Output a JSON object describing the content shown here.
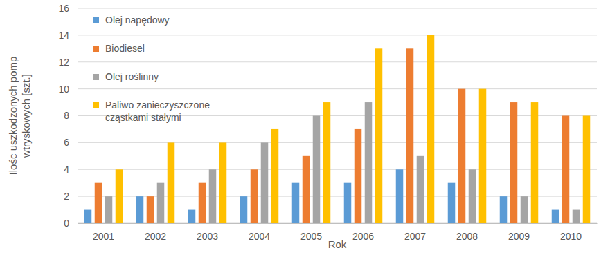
{
  "chart_data": {
    "type": "bar",
    "x_label": "Rok",
    "y_label": "Ilośc uszkodzonych pomp wtryskowych [szt.]",
    "categories": [
      "2001",
      "2002",
      "2003",
      "2004",
      "2005",
      "2006",
      "2007",
      "2008",
      "2009",
      "2010"
    ],
    "series": [
      {
        "name": "Olej napędowy",
        "color": "#5b9bd5",
        "values": [
          1,
          2,
          1,
          2,
          3,
          3,
          4,
          3,
          2,
          1
        ]
      },
      {
        "name": "Biodiesel",
        "color": "#ed7d31",
        "values": [
          3,
          2,
          3,
          4,
          5,
          7,
          13,
          10,
          9,
          8
        ]
      },
      {
        "name": "Olej roślinny",
        "color": "#a5a5a5",
        "values": [
          2,
          3,
          4,
          6,
          8,
          9,
          5,
          4,
          2,
          1
        ]
      },
      {
        "name": "Paliwo zanieczyszczone cząstkami stałymi",
        "color": "#ffc000",
        "values": [
          4,
          6,
          6,
          7,
          9,
          13,
          14,
          10,
          9,
          8
        ]
      }
    ],
    "ylim": [
      0,
      16
    ],
    "yticks": [
      0,
      2,
      4,
      6,
      8,
      10,
      12,
      14,
      16
    ],
    "grid": true,
    "legend": "top-left"
  }
}
